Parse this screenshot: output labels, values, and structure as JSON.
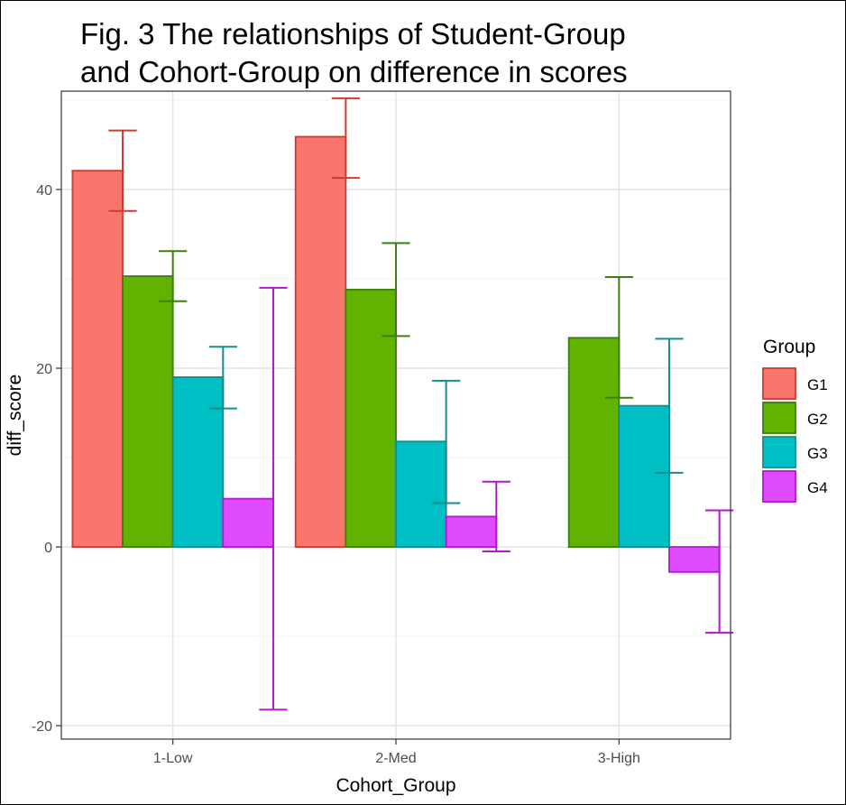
{
  "figure": {
    "title_lines": [
      "Fig. 3 The relationships of Student-Group",
      "and Cohort-Group on difference in scores"
    ]
  },
  "chart_data": {
    "type": "bar",
    "xlabel": "Cohort_Group",
    "ylabel": "diff_score",
    "categories": [
      "1-Low",
      "2-Med",
      "3-High"
    ],
    "ylim": [
      -21.5,
      51
    ],
    "yticks": [
      -20,
      0,
      20,
      40
    ],
    "grid": true,
    "legend": {
      "title": "Group",
      "placement": "right"
    },
    "series": [
      {
        "name": "G1",
        "fill": "#f8766d",
        "stroke": "#cc3b35",
        "values": [
          42.1,
          45.9,
          null
        ],
        "error_low": [
          37.6,
          41.3,
          null
        ],
        "error_high": [
          46.6,
          50.2,
          null
        ]
      },
      {
        "name": "G2",
        "fill": "#62b200",
        "stroke": "#3e7d10",
        "values": [
          30.3,
          28.8,
          23.4
        ],
        "error_low": [
          27.5,
          23.6,
          16.7
        ],
        "error_high": [
          33.1,
          34.0,
          30.2
        ]
      },
      {
        "name": "G3",
        "fill": "#00bfc4",
        "stroke": "#168c8c",
        "values": [
          19.0,
          11.8,
          15.8
        ],
        "error_low": [
          15.5,
          4.9,
          8.3
        ],
        "error_high": [
          22.4,
          18.6,
          23.3
        ]
      },
      {
        "name": "G4",
        "fill": "#e04bff",
        "stroke": "#b317cf",
        "values": [
          5.4,
          3.4,
          -2.8
        ],
        "error_low": [
          -18.2,
          -0.5,
          -9.6
        ],
        "error_high": [
          29.0,
          7.3,
          4.1
        ]
      }
    ]
  }
}
